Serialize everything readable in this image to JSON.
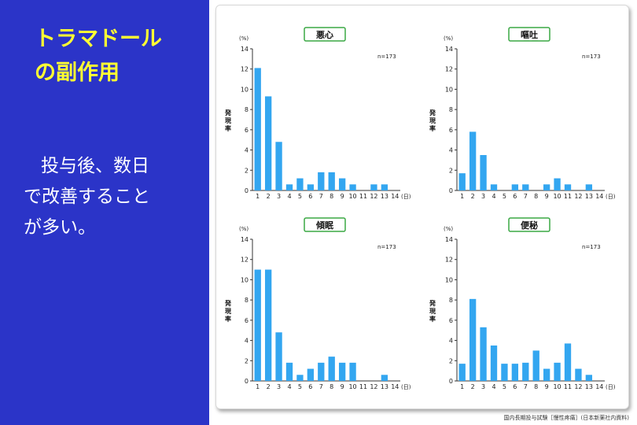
{
  "title_lines": [
    "トラマドール",
    "の副作用"
  ],
  "body_lines": [
    "投与後、数日",
    "で改善すること",
    "が多い。"
  ],
  "footnote": "国内長期投与試験［慢性疼痛］(日本新薬社内資料)",
  "colors": {
    "left_bg": "#2b34c8",
    "title": "#ffff33",
    "bar": "#33a6f0",
    "title_box": "#3aa844"
  },
  "chart_data": [
    {
      "type": "bar",
      "title": "悪心",
      "n_label": "n=173",
      "unit_label": "(%)",
      "ylabel": "発現率",
      "x_unit": "(日)",
      "ylim": [
        0,
        14
      ],
      "yticks": [
        "0",
        "2",
        "4",
        "6",
        "8",
        "10",
        "12",
        "14"
      ],
      "categories": [
        "1",
        "2",
        "3",
        "4",
        "5",
        "6",
        "7",
        "8",
        "9",
        "10",
        "11",
        "12",
        "13",
        "14"
      ],
      "values": [
        12.1,
        9.3,
        4.8,
        0.6,
        1.2,
        0.6,
        1.8,
        1.8,
        1.2,
        0.6,
        0,
        0.6,
        0.6,
        0
      ]
    },
    {
      "type": "bar",
      "title": "嘔吐",
      "n_label": "n=173",
      "unit_label": "(%)",
      "ylabel": "発現率",
      "x_unit": "(日)",
      "ylim": [
        0,
        14
      ],
      "yticks": [
        "0",
        "2",
        "4",
        "6",
        "8",
        "10",
        "12",
        "14"
      ],
      "categories": [
        "1",
        "2",
        "3",
        "4",
        "5",
        "6",
        "7",
        "8",
        "9",
        "10",
        "11",
        "12",
        "13",
        "14"
      ],
      "values": [
        1.7,
        5.8,
        3.5,
        0.6,
        0,
        0.6,
        0.6,
        0,
        0.6,
        1.2,
        0.6,
        0,
        0.6,
        0
      ]
    },
    {
      "type": "bar",
      "title": "傾眠",
      "n_label": "n=173",
      "unit_label": "(%)",
      "ylabel": "発現率",
      "x_unit": "(日)",
      "ylim": [
        0,
        14
      ],
      "yticks": [
        "0",
        "2",
        "4",
        "6",
        "8",
        "10",
        "12",
        "14"
      ],
      "categories": [
        "1",
        "2",
        "3",
        "4",
        "5",
        "6",
        "7",
        "8",
        "9",
        "10",
        "11",
        "12",
        "13",
        "14"
      ],
      "values": [
        11.0,
        11.0,
        4.8,
        1.8,
        0.6,
        1.2,
        1.8,
        2.4,
        1.8,
        1.8,
        0,
        0,
        0.6,
        0
      ]
    },
    {
      "type": "bar",
      "title": "便秘",
      "n_label": "n=173",
      "unit_label": "(%)",
      "ylabel": "発現率",
      "x_unit": "(日)",
      "ylim": [
        0,
        14
      ],
      "yticks": [
        "0",
        "2",
        "4",
        "6",
        "8",
        "10",
        "12",
        "14"
      ],
      "categories": [
        "1",
        "2",
        "3",
        "4",
        "5",
        "6",
        "7",
        "8",
        "9",
        "10",
        "11",
        "12",
        "13",
        "14"
      ],
      "values": [
        1.7,
        8.1,
        5.3,
        3.5,
        1.7,
        1.7,
        1.8,
        3.0,
        1.2,
        1.8,
        3.7,
        1.2,
        0.6,
        0
      ]
    }
  ]
}
